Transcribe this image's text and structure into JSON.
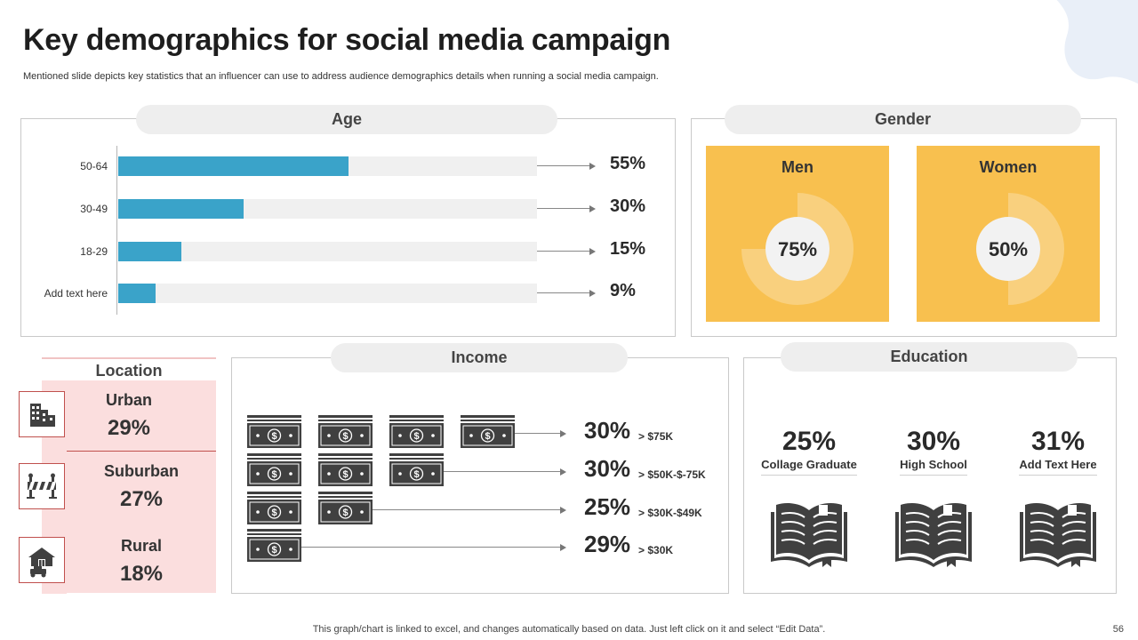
{
  "title": "Key demographics for social media campaign",
  "subtitle": "Mentioned slide depicts key statistics that an influencer can use to address audience demographics details when running a social media campaign.",
  "footer": "This graph/chart is linked to excel,  and changes automatically based on data. Just left click on it and select “Edit Data”.",
  "page_number": "56",
  "colors": {
    "bar": "#3aa3c9",
    "track": "#f0f0f0",
    "gender_card": "#f8c04f",
    "location_bg": "#fbdede",
    "icon_dark": "#404040"
  },
  "sections": {
    "age": "Age",
    "gender": "Gender",
    "location": "Location",
    "income": "Income",
    "education": "Education"
  },
  "chart_data": [
    {
      "type": "bar",
      "orientation": "horizontal",
      "title": "Age",
      "categories": [
        "50-64",
        "30-49",
        "18-29",
        "Add text here"
      ],
      "values": [
        55,
        30,
        15,
        9
      ],
      "value_labels": [
        "55%",
        "30%",
        "15%",
        "9%"
      ],
      "xlim": [
        0,
        100
      ]
    },
    {
      "type": "pie",
      "title": "Gender",
      "series": [
        {
          "name": "Men",
          "value": 75,
          "label": "75%"
        },
        {
          "name": "Women",
          "value": 50,
          "label": "50%"
        }
      ]
    }
  ],
  "location": [
    {
      "name": "Urban",
      "pct": "29%",
      "icon": "buildings-icon"
    },
    {
      "name": "Suburban",
      "pct": "27%",
      "icon": "road-sign-icon"
    },
    {
      "name": "Rural",
      "pct": "18%",
      "icon": "farm-house-icon"
    }
  ],
  "income": [
    {
      "pct": "30%",
      "label": "> $75K",
      "bills": 4
    },
    {
      "pct": "30%",
      "label": "> $50K-$-75K",
      "bills": 3
    },
    {
      "pct": "25%",
      "label": "> $30K-$49K",
      "bills": 2
    },
    {
      "pct": "29%",
      "label": "> $30K",
      "bills": 1
    }
  ],
  "education": [
    {
      "pct": "25%",
      "label": "Collage Graduate",
      "icon": "book-icon"
    },
    {
      "pct": "30%",
      "label": "High School",
      "icon": "book-icon"
    },
    {
      "pct": "31%",
      "label": "Add Text Here",
      "icon": "book-icon"
    }
  ]
}
